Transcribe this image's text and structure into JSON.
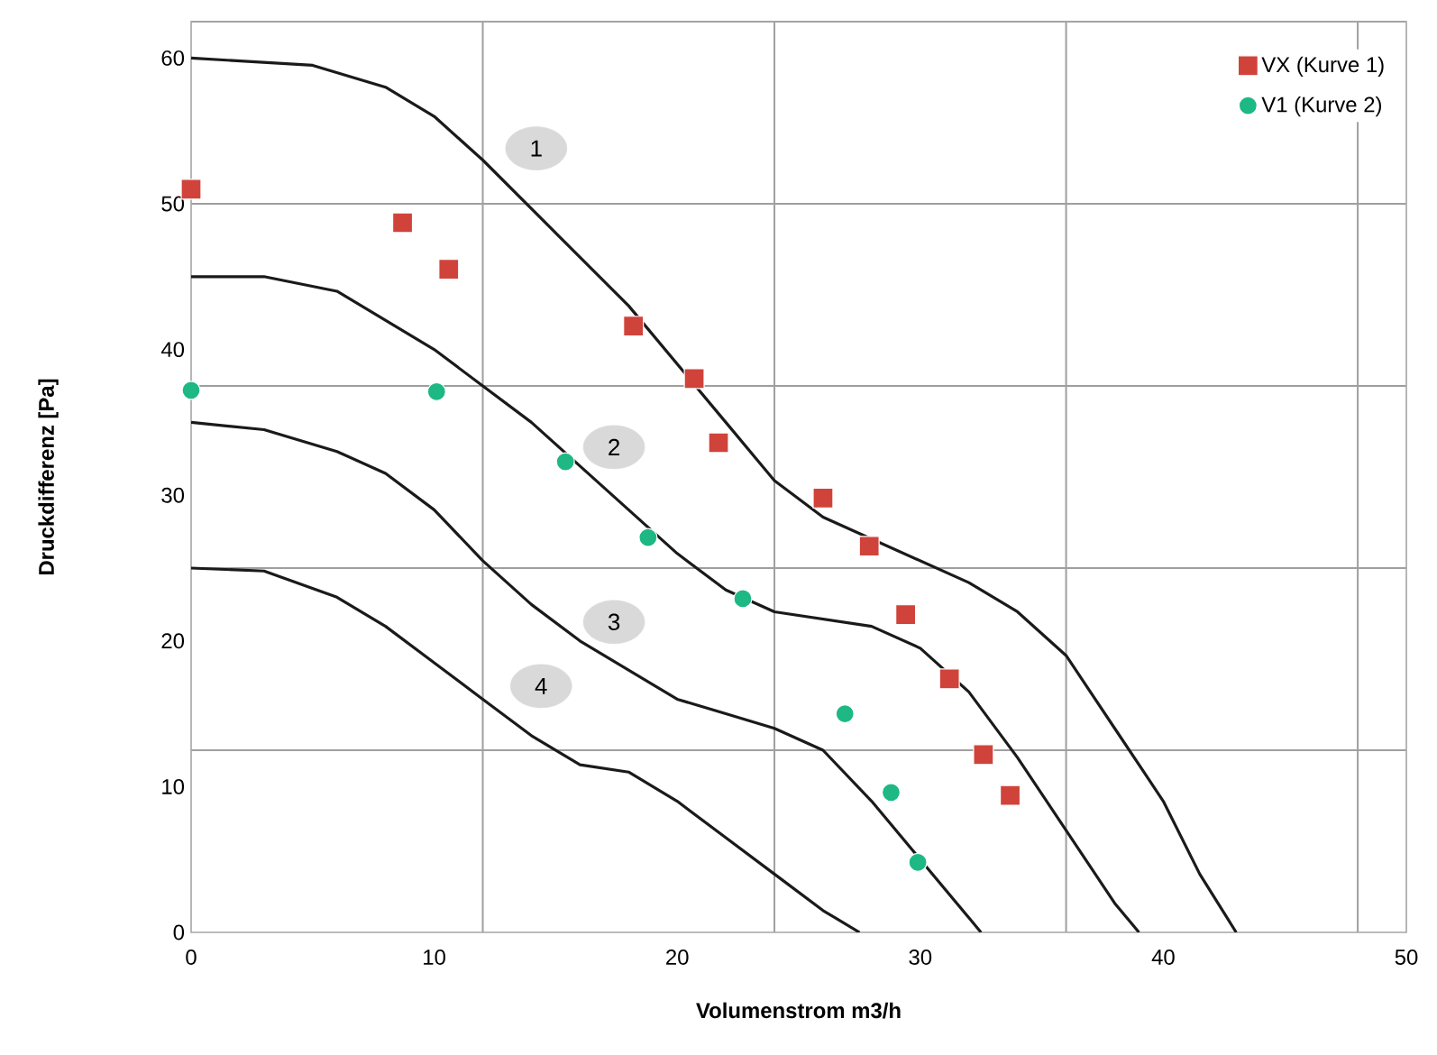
{
  "chart_data": {
    "type": "line",
    "xlabel": "Volumenstrom m3/h",
    "ylabel": "Druckdifferenz [Pa]",
    "xlim": [
      0,
      50
    ],
    "ylim": [
      0,
      62.5
    ],
    "xticks": [
      0,
      10,
      {
        "value": 12,
        "label": null
      },
      20,
      {
        "value": 24,
        "label": null
      },
      30,
      {
        "value": 36,
        "label": null
      },
      40,
      {
        "value": 48,
        "label": null
      },
      50
    ],
    "yticks": [
      0,
      10,
      {
        "value": 12.5,
        "label": null
      },
      20,
      {
        "value": 25,
        "label": null
      },
      30,
      {
        "value": 37.5,
        "label": null
      },
      40,
      50,
      {
        "value": 50,
        "label": null
      },
      60,
      {
        "value": 62.5,
        "label": null
      }
    ],
    "grid": true,
    "legend": "top right",
    "series": [
      {
        "color": "#1a1a1a",
        "marker": "none",
        "line_style": "solid",
        "x": [
          0,
          5,
          8,
          10,
          12,
          15,
          18,
          20,
          22,
          24,
          26,
          28,
          30,
          32,
          34,
          36,
          38,
          40,
          41.5,
          43
        ],
        "values": [
          60,
          59.5,
          58,
          56,
          53,
          48,
          43,
          39,
          35,
          31,
          28.5,
          27,
          25.5,
          24,
          22,
          19,
          14,
          9,
          4,
          0
        ]
      },
      {
        "color": "#1a1a1a",
        "marker": "none",
        "line_style": "solid",
        "x": [
          0,
          3,
          6,
          8,
          10,
          12,
          14,
          16,
          18,
          20,
          22,
          24,
          26,
          28,
          30,
          32,
          34,
          36,
          38,
          39
        ],
        "values": [
          45,
          45,
          44,
          42,
          40,
          37.5,
          35,
          32,
          29,
          26,
          23.5,
          22,
          21.5,
          21,
          19.5,
          16.5,
          12,
          7,
          2,
          0
        ]
      },
      {
        "color": "#1a1a1a",
        "marker": "none",
        "line_style": "solid",
        "x": [
          0,
          3,
          6,
          8,
          10,
          12,
          14,
          16,
          18,
          20,
          22,
          24,
          26,
          28,
          30,
          32,
          32.5
        ],
        "values": [
          35,
          34.5,
          33,
          31.5,
          29,
          25.5,
          22.5,
          20,
          18,
          16,
          15,
          14,
          12.5,
          9,
          5,
          1,
          0
        ]
      },
      {
        "color": "#1a1a1a",
        "marker": "none",
        "line_style": "solid",
        "x": [
          0,
          3,
          6,
          8,
          10,
          12,
          14,
          16,
          18,
          20,
          22,
          24,
          26,
          27.5
        ],
        "values": [
          25,
          24.8,
          23,
          21,
          18.5,
          16,
          13.5,
          11.5,
          11,
          9,
          6.5,
          4,
          1.5,
          0
        ]
      },
      {
        "type": "scatter",
        "name": "VX (Kurve 1)",
        "color": "#d0433a",
        "marker": "square",
        "x": [
          0,
          8.7,
          10.6,
          18.2,
          20.7,
          21.7,
          26,
          27.9,
          29.4,
          31.2,
          32.6,
          33.7
        ],
        "values": [
          51,
          48.7,
          45.5,
          41.6,
          38,
          33.6,
          29.8,
          26.5,
          21.8,
          17.4,
          12.2,
          9.4
        ]
      },
      {
        "type": "scatter",
        "name": "V1 (Kurve 2)",
        "color": "#1db884",
        "marker": "circle",
        "x": [
          0,
          10.1,
          15.4,
          18.8,
          22.7,
          26.9,
          28.8,
          29.9
        ],
        "values": [
          37.2,
          37.1,
          32.3,
          27.1,
          22.9,
          15,
          9.6,
          4.8
        ]
      }
    ],
    "annotations": [
      {
        "text": "1",
        "x": 14.2,
        "y": 53.8
      },
      {
        "text": "2",
        "x": 17.4,
        "y": 33.3
      },
      {
        "text": "3",
        "x": 17.4,
        "y": 21.3
      },
      {
        "text": "4",
        "x": 14.4,
        "y": 16.9
      }
    ]
  }
}
